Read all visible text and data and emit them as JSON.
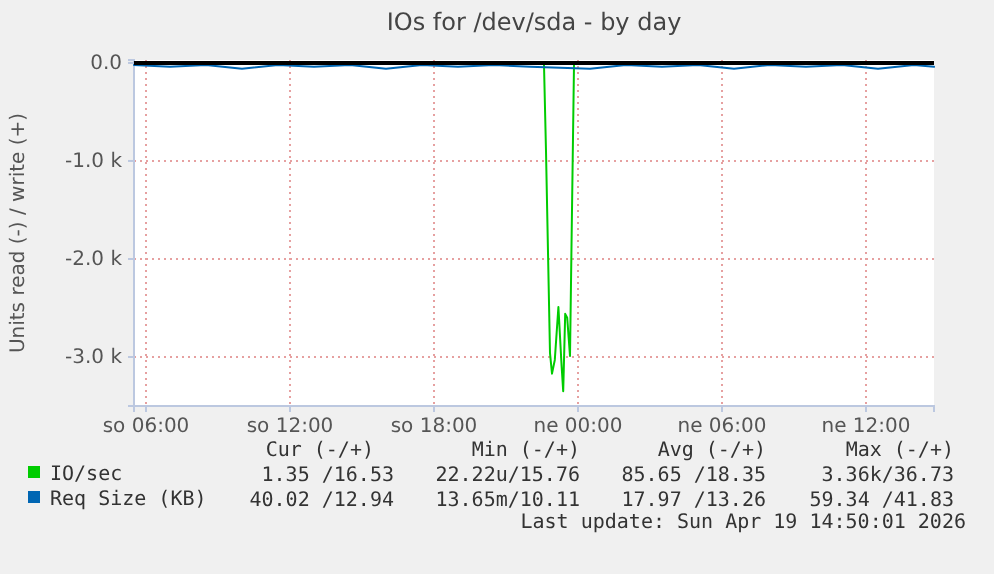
{
  "chart_data": {
    "type": "line",
    "title": "IOs for /dev/sda - by day",
    "ylabel": "Units read (-) / write (+)",
    "xlim": [
      "2026-04-18T05:30",
      "2026-04-19T14:50"
    ],
    "xticks": [
      {
        "value": "2026-04-18T06:00",
        "label": "so 06:00"
      },
      {
        "value": "2026-04-18T12:00",
        "label": "so 12:00"
      },
      {
        "value": "2026-04-18T18:00",
        "label": "so 18:00"
      },
      {
        "value": "2026-04-19T00:00",
        "label": "ne 00:00"
      },
      {
        "value": "2026-04-19T06:00",
        "label": "ne 06:00"
      },
      {
        "value": "2026-04-19T12:00",
        "label": "ne 12:00"
      }
    ],
    "ylim": [
      -3500,
      30
    ],
    "yticks": [
      {
        "value": 0,
        "label": "0.0"
      },
      {
        "value": -1000,
        "label": "-1.0 k"
      },
      {
        "value": -2000,
        "label": "-2.0 k"
      },
      {
        "value": -3000,
        "label": "-3.0 k"
      }
    ],
    "grid": true,
    "legend": "bottom left",
    "ref_lines": [
      {
        "axis": "y",
        "value": 0,
        "color": "#000000"
      }
    ],
    "series": [
      {
        "name": "IO/sec",
        "color": "#00cc00",
        "x": [
          "2026-04-18T22:35",
          "2026-04-18T22:40",
          "2026-04-18T22:50",
          "2026-04-18T22:55",
          "2026-04-18T23:02",
          "2026-04-18T23:11",
          "2026-04-18T23:19",
          "2026-04-18T23:23",
          "2026-04-18T23:28",
          "2026-04-18T23:33",
          "2026-04-18T23:40",
          "2026-04-18T23:45",
          "2026-04-18T23:50"
        ],
        "values": [
          -20,
          -900,
          -2960,
          -3170,
          -3030,
          -2490,
          -3090,
          -3350,
          -2560,
          -2600,
          -2990,
          -1500,
          -20
        ]
      },
      {
        "name": "Req Size (KB)",
        "color": "#0066b3",
        "x": [
          "2026-04-18T05:30",
          "2026-04-18T07:00",
          "2026-04-18T08:30",
          "2026-04-18T10:00",
          "2026-04-18T11:30",
          "2026-04-18T13:00",
          "2026-04-18T14:30",
          "2026-04-18T16:00",
          "2026-04-18T17:30",
          "2026-04-18T19:00",
          "2026-04-18T20:30",
          "2026-04-18T22:00",
          "2026-04-19T00:30",
          "2026-04-19T02:00",
          "2026-04-19T03:30",
          "2026-04-19T05:00",
          "2026-04-19T06:30",
          "2026-04-19T08:00",
          "2026-04-19T09:30",
          "2026-04-19T11:00",
          "2026-04-19T12:30",
          "2026-04-19T14:00",
          "2026-04-19T14:50"
        ],
        "values": [
          -20,
          -40,
          -20,
          -60,
          -20,
          -40,
          -20,
          -60,
          -20,
          -40,
          -20,
          -40,
          -60,
          -20,
          -40,
          -20,
          -60,
          -20,
          -40,
          -20,
          -60,
          -20,
          -40
        ]
      }
    ],
    "annotations": [
      "Cur (-/+)",
      "Min (-/+)",
      "Avg (-/+)",
      "Max (-/+)",
      "1.35 /16.53",
      "22.22u/15.76",
      "85.65 /18.35",
      "3.36k/36.73",
      "40.02 /12.94",
      "13.65m/10.11",
      "17.97 /13.26",
      "59.34 /41.83",
      "Last update: Sun Apr 19 14:50:01 2026"
    ]
  }
}
